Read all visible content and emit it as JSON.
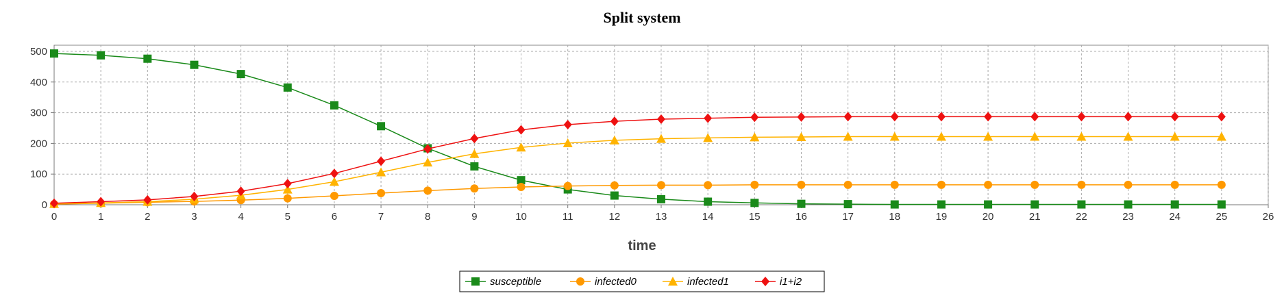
{
  "chart_data": {
    "type": "line",
    "title": "Split system",
    "xlabel": "time",
    "ylabel": "",
    "xlim": [
      0,
      26
    ],
    "ylim": [
      0,
      520
    ],
    "xticks": [
      0,
      1,
      2,
      3,
      4,
      5,
      6,
      7,
      8,
      9,
      10,
      11,
      12,
      13,
      14,
      15,
      16,
      17,
      18,
      19,
      20,
      21,
      22,
      23,
      24,
      25,
      26
    ],
    "yticks": [
      0,
      100,
      200,
      300,
      400,
      500
    ],
    "grid": true,
    "legend_position": "bottom",
    "x": [
      0,
      1,
      2,
      3,
      4,
      5,
      6,
      7,
      8,
      9,
      10,
      11,
      12,
      13,
      14,
      15,
      16,
      17,
      18,
      19,
      20,
      21,
      22,
      23,
      24,
      25
    ],
    "series": [
      {
        "name": "susceptible",
        "color": "#1a8a1a",
        "marker": "square",
        "values": [
          493,
          487,
          476,
          456,
          426,
          382,
          324,
          256,
          184,
          125,
          80,
          50,
          30,
          18,
          10,
          6,
          3,
          2,
          1,
          1,
          1,
          1,
          1,
          1,
          1,
          1
        ]
      },
      {
        "name": "infected0",
        "color": "#ff9900",
        "marker": "circle",
        "values": [
          2,
          5,
          8,
          11,
          15,
          21,
          29,
          38,
          46,
          53,
          58,
          61,
          63,
          64,
          64,
          65,
          65,
          65,
          65,
          65,
          65,
          65,
          65,
          65,
          65,
          65
        ]
      },
      {
        "name": "infected1",
        "color": "#ffb300",
        "marker": "triangle",
        "values": [
          3,
          6,
          10,
          18,
          31,
          50,
          75,
          106,
          138,
          166,
          187,
          201,
          210,
          215,
          218,
          220,
          221,
          222,
          222,
          222,
          222,
          222,
          222,
          222,
          222,
          222
        ]
      },
      {
        "name": "i1+i2",
        "color": "#ee1111",
        "marker": "diamond",
        "values": [
          5,
          10,
          16,
          27,
          44,
          69,
          102,
          142,
          182,
          216,
          244,
          261,
          272,
          279,
          282,
          285,
          286,
          287,
          287,
          287,
          287,
          287,
          287,
          287,
          287,
          287
        ]
      }
    ]
  }
}
